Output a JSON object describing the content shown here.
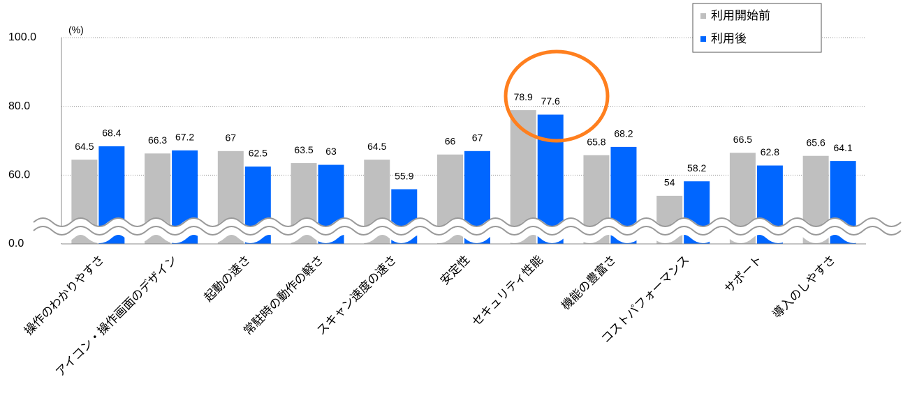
{
  "chart_data": {
    "type": "bar",
    "unit_label": "(%)",
    "categories": [
      "操作のわかりやすさ",
      "アイコン・操作画面のデザイン",
      "起動の速さ",
      "常駐時の動作の軽さ",
      "スキャン速度の速さ",
      "安定性",
      "セキュリティ性能",
      "機能の豊富さ",
      "コストパフォーマンス",
      "サポート",
      "導入のしやすさ"
    ],
    "series": [
      {
        "name": "利用開始前",
        "color": "#bfbfbf",
        "values": [
          64.5,
          66.3,
          67.0,
          63.5,
          64.5,
          66.0,
          78.9,
          65.8,
          54.0,
          66.5,
          65.6
        ]
      },
      {
        "name": "利用後",
        "color": "#0066ff",
        "values": [
          68.4,
          67.2,
          62.5,
          63.0,
          55.9,
          67.0,
          77.6,
          68.2,
          58.2,
          62.8,
          64.1
        ]
      }
    ],
    "ylim": [
      0,
      100
    ],
    "yticks": [
      {
        "value": 0,
        "label": "0.0"
      },
      {
        "value": 60,
        "label": "60.0"
      },
      {
        "value": 80,
        "label": "80.0"
      },
      {
        "value": 100,
        "label": "100.0"
      }
    ],
    "axis_break": true,
    "grid": true,
    "legend": "top-right"
  }
}
